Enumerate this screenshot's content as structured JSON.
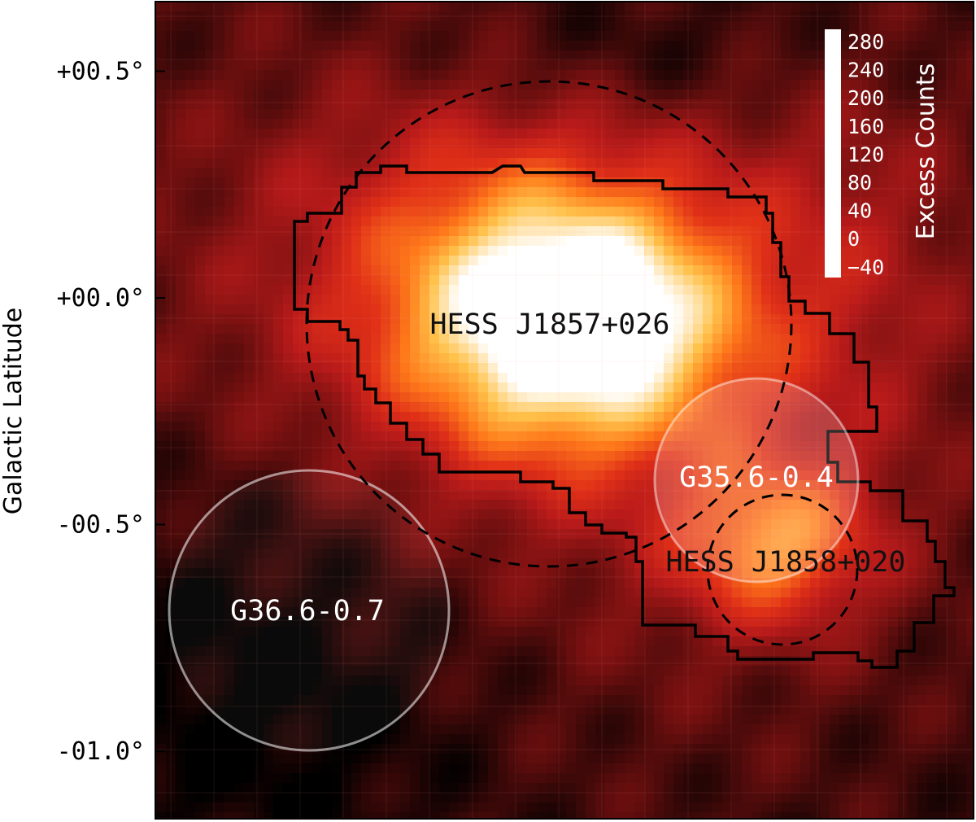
{
  "chart_data": {
    "type": "heatmap",
    "ylabel": "Galactic Latitude",
    "ylim": [
      -1.15,
      0.65
    ],
    "y_ticks": [
      {
        "value": 0.5,
        "label": "+00.5°"
      },
      {
        "value": 0.0,
        "label": "+00.0°"
      },
      {
        "value": -0.5,
        "label": "-00.5°"
      },
      {
        "value": -1.0,
        "label": "-01.0°"
      }
    ],
    "colorbar": {
      "label": "Excess Counts",
      "range": [
        -40,
        280
      ],
      "ticks": [
        "280",
        "240",
        "200",
        "160",
        "120",
        "80",
        "40",
        "0",
        "−40"
      ]
    },
    "colormap_stops": [
      "#000000",
      "#2b0606",
      "#6e0f0f",
      "#b81a1a",
      "#e03018",
      "#ff7a1a",
      "#ffc24a",
      "#ffffff"
    ],
    "sources": [
      {
        "name": "HESS J1857+026",
        "type": "gamma-ray source",
        "style": "dashed",
        "peak_counts": 300
      },
      {
        "name": "HESS J1858+020",
        "type": "gamma-ray source",
        "style": "dashed",
        "peak_counts": 155
      },
      {
        "name": "G35.6-0.4",
        "type": "supernova remnant",
        "style": "translucent"
      },
      {
        "name": "G36.6-0.7",
        "type": "supernova remnant",
        "style": "translucent"
      }
    ]
  }
}
